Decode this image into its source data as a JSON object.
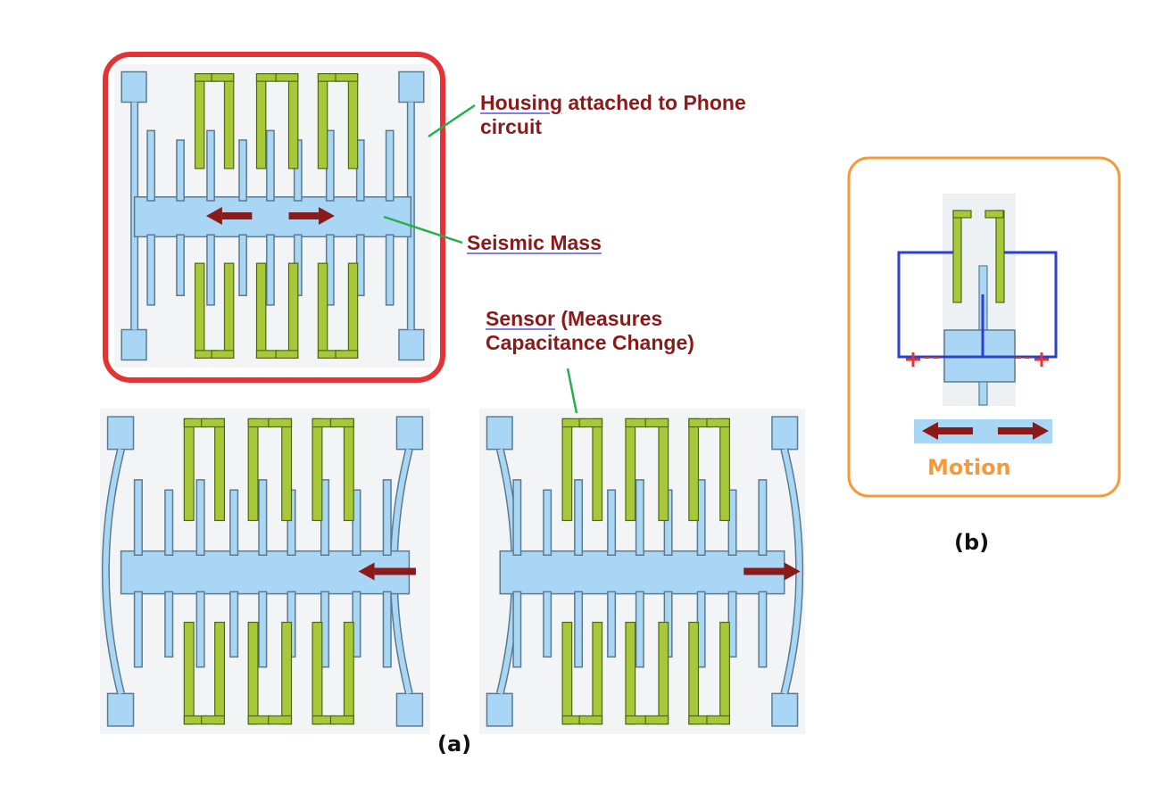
{
  "labels": {
    "housing_word": "Housing",
    "housing_rest_line1": " attached to Phone",
    "housing_line2": "circuit",
    "seismic": "Seismic Mass",
    "sensor_word": "Sensor",
    "sensor_rest_line1": " (Measures",
    "sensor_line2": "Capacitance Change)",
    "motion": "Motion",
    "caption_a": "(a)",
    "caption_b": "(b)"
  },
  "colors": {
    "housing_frame": "#e53335",
    "motion_frame": "#f39a3c",
    "mass": "#a9d6f5",
    "outline": "#5c7b8f",
    "finger": "#a8c83a",
    "finger_outline": "#4e6a10",
    "label_text": "#8b1a1a",
    "leader": "#22b14c",
    "circuit": "#2b3fd1",
    "arrow": "#8b1a1a"
  },
  "states": [
    {
      "name": "rest",
      "displacement": "none"
    },
    {
      "name": "left",
      "displacement": "left"
    },
    {
      "name": "right",
      "displacement": "right"
    }
  ]
}
